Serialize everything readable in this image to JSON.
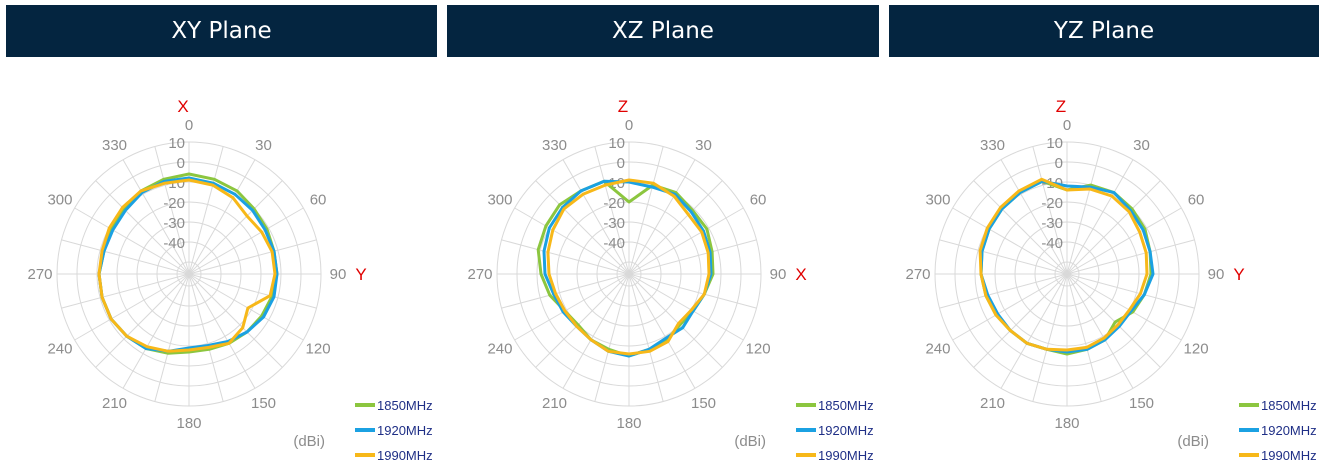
{
  "headers": [
    "XY Plane",
    "XZ Plane",
    "YZ Plane"
  ],
  "colors": {
    "header_bg": "#042540",
    "grid": "#d9d9d9",
    "tick_text": "#8c8c8c",
    "axis_label": "#e00000",
    "legend_text": "#1f2f86"
  },
  "chart_data": [
    {
      "type": "line",
      "subtype": "polar",
      "title": "XY Plane",
      "unit": "(dBi)",
      "angle_ticks": [
        0,
        30,
        60,
        90,
        120,
        150,
        180,
        210,
        240,
        270,
        300,
        330
      ],
      "radial_ticks": [
        10,
        0,
        -10,
        -20,
        -30,
        -40
      ],
      "rlim": [
        -50,
        10
      ],
      "grid": true,
      "legend": "bottom-right",
      "axis_labels": {
        "top": "X",
        "right": "Y"
      },
      "angles": [
        0,
        15,
        30,
        45,
        60,
        75,
        90,
        105,
        120,
        135,
        150,
        165,
        180,
        195,
        210,
        225,
        240,
        255,
        270,
        285,
        300,
        315,
        330,
        345
      ],
      "series": [
        {
          "name": "1850MHz",
          "color": "#8cc63f",
          "values": [
            -6,
            -7,
            -8,
            -10,
            -11,
            -12,
            -12,
            -13,
            -14,
            -15,
            -16,
            -17,
            -17,
            -15,
            -13,
            -12,
            -11,
            -11,
            -11,
            -12,
            -11,
            -10,
            -8,
            -7
          ]
        },
        {
          "name": "1920MHz",
          "color": "#1ba1e2",
          "values": [
            -8,
            -9,
            -10,
            -11,
            -12,
            -12,
            -12,
            -12,
            -13,
            -15,
            -17,
            -19,
            -19,
            -16,
            -13,
            -12,
            -11,
            -11,
            -11,
            -12,
            -12,
            -11,
            -9,
            -8
          ]
        },
        {
          "name": "1990MHz",
          "color": "#f7b819",
          "values": [
            -9,
            -10,
            -12,
            -15,
            -14,
            -13,
            -13,
            -14,
            -22,
            -18,
            -16,
            -18,
            -18,
            -16,
            -14,
            -12,
            -11,
            -11,
            -11,
            -11,
            -10,
            -9,
            -8,
            -9
          ]
        }
      ]
    },
    {
      "type": "line",
      "subtype": "polar",
      "title": "XZ Plane",
      "unit": "(dBi)",
      "angle_ticks": [
        0,
        30,
        60,
        90,
        120,
        150,
        180,
        210,
        240,
        270,
        300,
        330
      ],
      "radial_ticks": [
        10,
        0,
        -10,
        -20,
        -30,
        -40
      ],
      "rlim": [
        -50,
        10
      ],
      "grid": true,
      "legend": "bottom-right",
      "axis_labels": {
        "top": "Z",
        "right": "X"
      },
      "angles": [
        0,
        15,
        30,
        45,
        60,
        75,
        90,
        105,
        120,
        135,
        150,
        165,
        180,
        195,
        210,
        225,
        240,
        255,
        270,
        285,
        300,
        315,
        330,
        345
      ],
      "series": [
        {
          "name": "1850MHz",
          "color": "#8cc63f",
          "values": [
            -20,
            -10,
            -9,
            -11,
            -11,
            -13,
            -14,
            -17,
            -19,
            -20,
            -18,
            -17,
            -15,
            -17,
            -18,
            -20,
            -19,
            -15,
            -12,
            -9,
            -8,
            -7,
            -8,
            -8
          ]
        },
        {
          "name": "1920MHz",
          "color": "#1ba1e2",
          "values": [
            -10,
            -11,
            -10,
            -12,
            -13,
            -14,
            -15,
            -17,
            -19,
            -18,
            -19,
            -17,
            -15,
            -16,
            -18,
            -19,
            -18,
            -17,
            -14,
            -12,
            -10,
            -9,
            -8,
            -8
          ]
        },
        {
          "name": "1990MHz",
          "color": "#f7b819",
          "values": [
            -9,
            -9,
            -11,
            -14,
            -14,
            -15,
            -16,
            -17,
            -20,
            -21,
            -17,
            -16,
            -16,
            -16,
            -18,
            -19,
            -19,
            -18,
            -16,
            -14,
            -12,
            -10,
            -10,
            -10
          ]
        }
      ]
    },
    {
      "type": "line",
      "subtype": "polar",
      "title": "YZ Plane",
      "unit": "(dBi)",
      "angle_ticks": [
        0,
        30,
        60,
        90,
        120,
        150,
        180,
        210,
        240,
        270,
        300,
        330
      ],
      "radial_ticks": [
        10,
        0,
        -10,
        -20,
        -30,
        -40
      ],
      "rlim": [
        -50,
        10
      ],
      "grid": true,
      "legend": "bottom-right",
      "axis_labels": {
        "top": "Z",
        "right": "Y"
      },
      "angles": [
        0,
        15,
        30,
        45,
        60,
        75,
        90,
        105,
        120,
        135,
        150,
        165,
        180,
        195,
        210,
        225,
        240,
        255,
        270,
        285,
        300,
        315,
        330,
        345
      ],
      "series": [
        {
          "name": "1850MHz",
          "color": "#8cc63f",
          "values": [
            -14,
            -10,
            -9,
            -10,
            -11,
            -13,
            -14,
            -16,
            -18,
            -22,
            -18,
            -17,
            -16,
            -17,
            -16,
            -16,
            -15,
            -14,
            -13,
            -12,
            -11,
            -10,
            -9,
            -8
          ]
        },
        {
          "name": "1920MHz",
          "color": "#1ba1e2",
          "values": [
            -12,
            -11,
            -9,
            -11,
            -12,
            -13,
            -13,
            -16,
            -19,
            -19,
            -18,
            -17,
            -17,
            -17,
            -16,
            -16,
            -16,
            -15,
            -13,
            -12,
            -11,
            -10,
            -9,
            -8
          ]
        },
        {
          "name": "1990MHz",
          "color": "#f7b819",
          "values": [
            -14,
            -12,
            -11,
            -12,
            -14,
            -15,
            -16,
            -18,
            -20,
            -20,
            -19,
            -18,
            -18,
            -17,
            -16,
            -16,
            -15,
            -14,
            -13,
            -11,
            -10,
            -9,
            -8,
            -7
          ]
        }
      ]
    }
  ]
}
